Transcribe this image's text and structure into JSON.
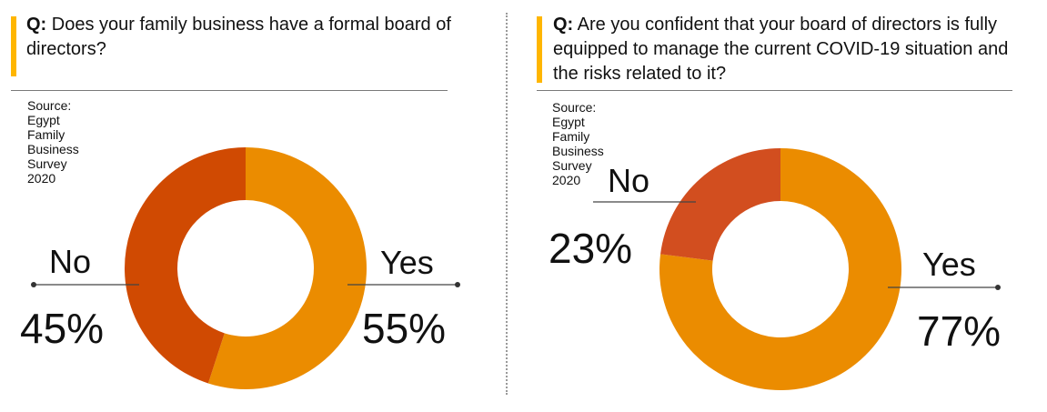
{
  "source_text": "Source: Egypt Family Business Survey 2020",
  "colors": {
    "accent": "#ffb600",
    "yes": "#eb8c00",
    "no_left": "#d04a02",
    "no_right": "#d24e1f"
  },
  "chart_data": [
    {
      "type": "pie",
      "question_prefix": "Q:",
      "question_text": "Does your family business have a formal board of directors?",
      "slices": [
        {
          "label": "Yes",
          "value": 55,
          "value_label": "55%",
          "color": "#eb8c00"
        },
        {
          "label": "No",
          "value": 45,
          "value_label": "45%",
          "color": "#d04a02"
        }
      ]
    },
    {
      "type": "pie",
      "question_prefix": "Q:",
      "question_text": "Are you confident that your board of directors is fully equipped to manage the current COVID-19 situation and the risks related to it?",
      "slices": [
        {
          "label": "Yes",
          "value": 77,
          "value_label": "77%",
          "color": "#eb8c00"
        },
        {
          "label": "No",
          "value": 23,
          "value_label": "23%",
          "color": "#d24e1f"
        }
      ]
    }
  ]
}
